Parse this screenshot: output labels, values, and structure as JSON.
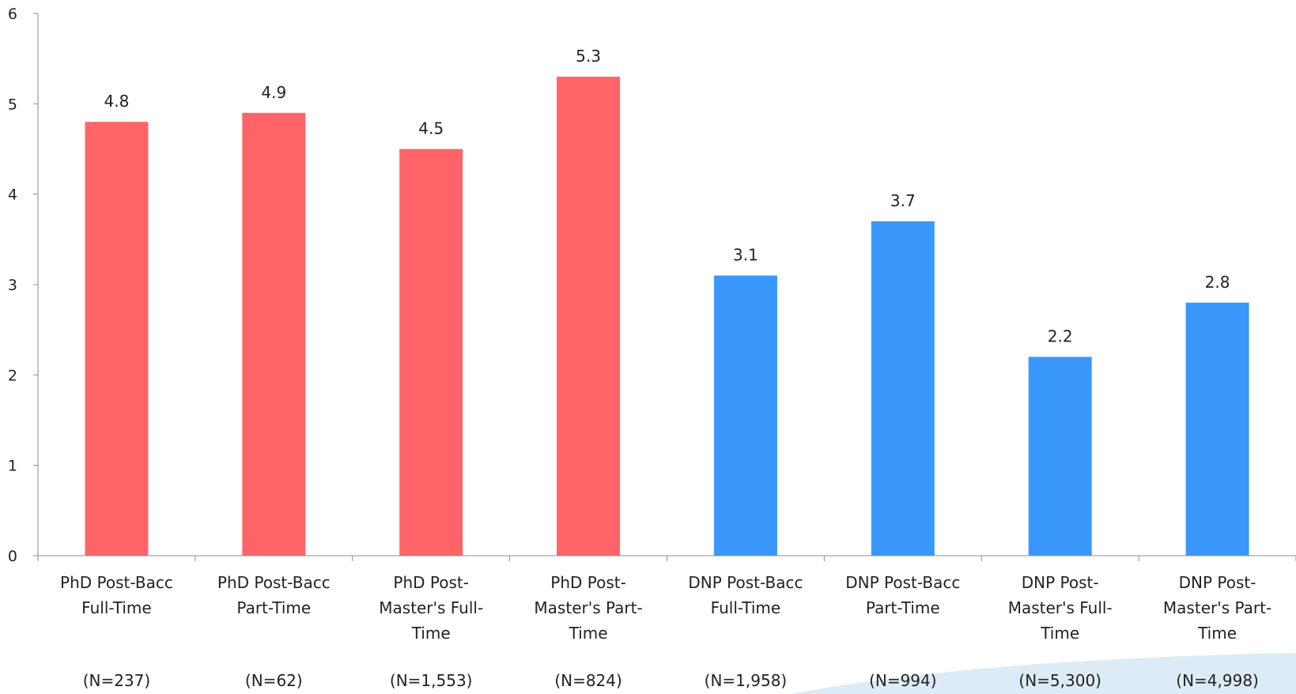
{
  "colors": {
    "phd": "#ff6469",
    "dnp": "#3a98fd",
    "axis": "#8c8c8c",
    "swoosh": "#dcebf5"
  },
  "chart_data": {
    "type": "bar",
    "title": "",
    "xlabel": "",
    "ylabel": "",
    "ylim": [
      0,
      6
    ],
    "yticks": [
      "0",
      "1",
      "2",
      "3",
      "4",
      "5",
      "6"
    ],
    "grid": false,
    "categories": [
      {
        "lines": [
          "PhD Post-Bacc",
          "Full-Time"
        ],
        "n": "(N=237)"
      },
      {
        "lines": [
          "PhD Post-Bacc",
          "Part-Time"
        ],
        "n": "(N=62)"
      },
      {
        "lines": [
          "PhD Post-",
          "Master's Full-",
          "Time"
        ],
        "n": "(N=1,553)"
      },
      {
        "lines": [
          "PhD Post-",
          "Master's Part-",
          "Time"
        ],
        "n": "(N=824)"
      },
      {
        "lines": [
          "DNP Post-Bacc",
          "Full-Time"
        ],
        "n": "(N=1,958)"
      },
      {
        "lines": [
          "DNP Post-Bacc",
          "Part-Time"
        ],
        "n": "(N=994)"
      },
      {
        "lines": [
          "DNP Post-",
          "Master's Full-",
          "Time"
        ],
        "n": "(N=5,300)"
      },
      {
        "lines": [
          "DNP Post-",
          "Master's Part-",
          "Time"
        ],
        "n": "(N=4,998)"
      }
    ],
    "values": [
      4.8,
      4.9,
      4.5,
      5.3,
      3.1,
      3.7,
      2.2,
      2.8
    ],
    "data_labels": [
      "4.8",
      "4.9",
      "4.5",
      "5.3",
      "3.1",
      "3.7",
      "2.2",
      "2.8"
    ],
    "bar_groups": [
      "phd",
      "phd",
      "phd",
      "phd",
      "dnp",
      "dnp",
      "dnp",
      "dnp"
    ]
  }
}
